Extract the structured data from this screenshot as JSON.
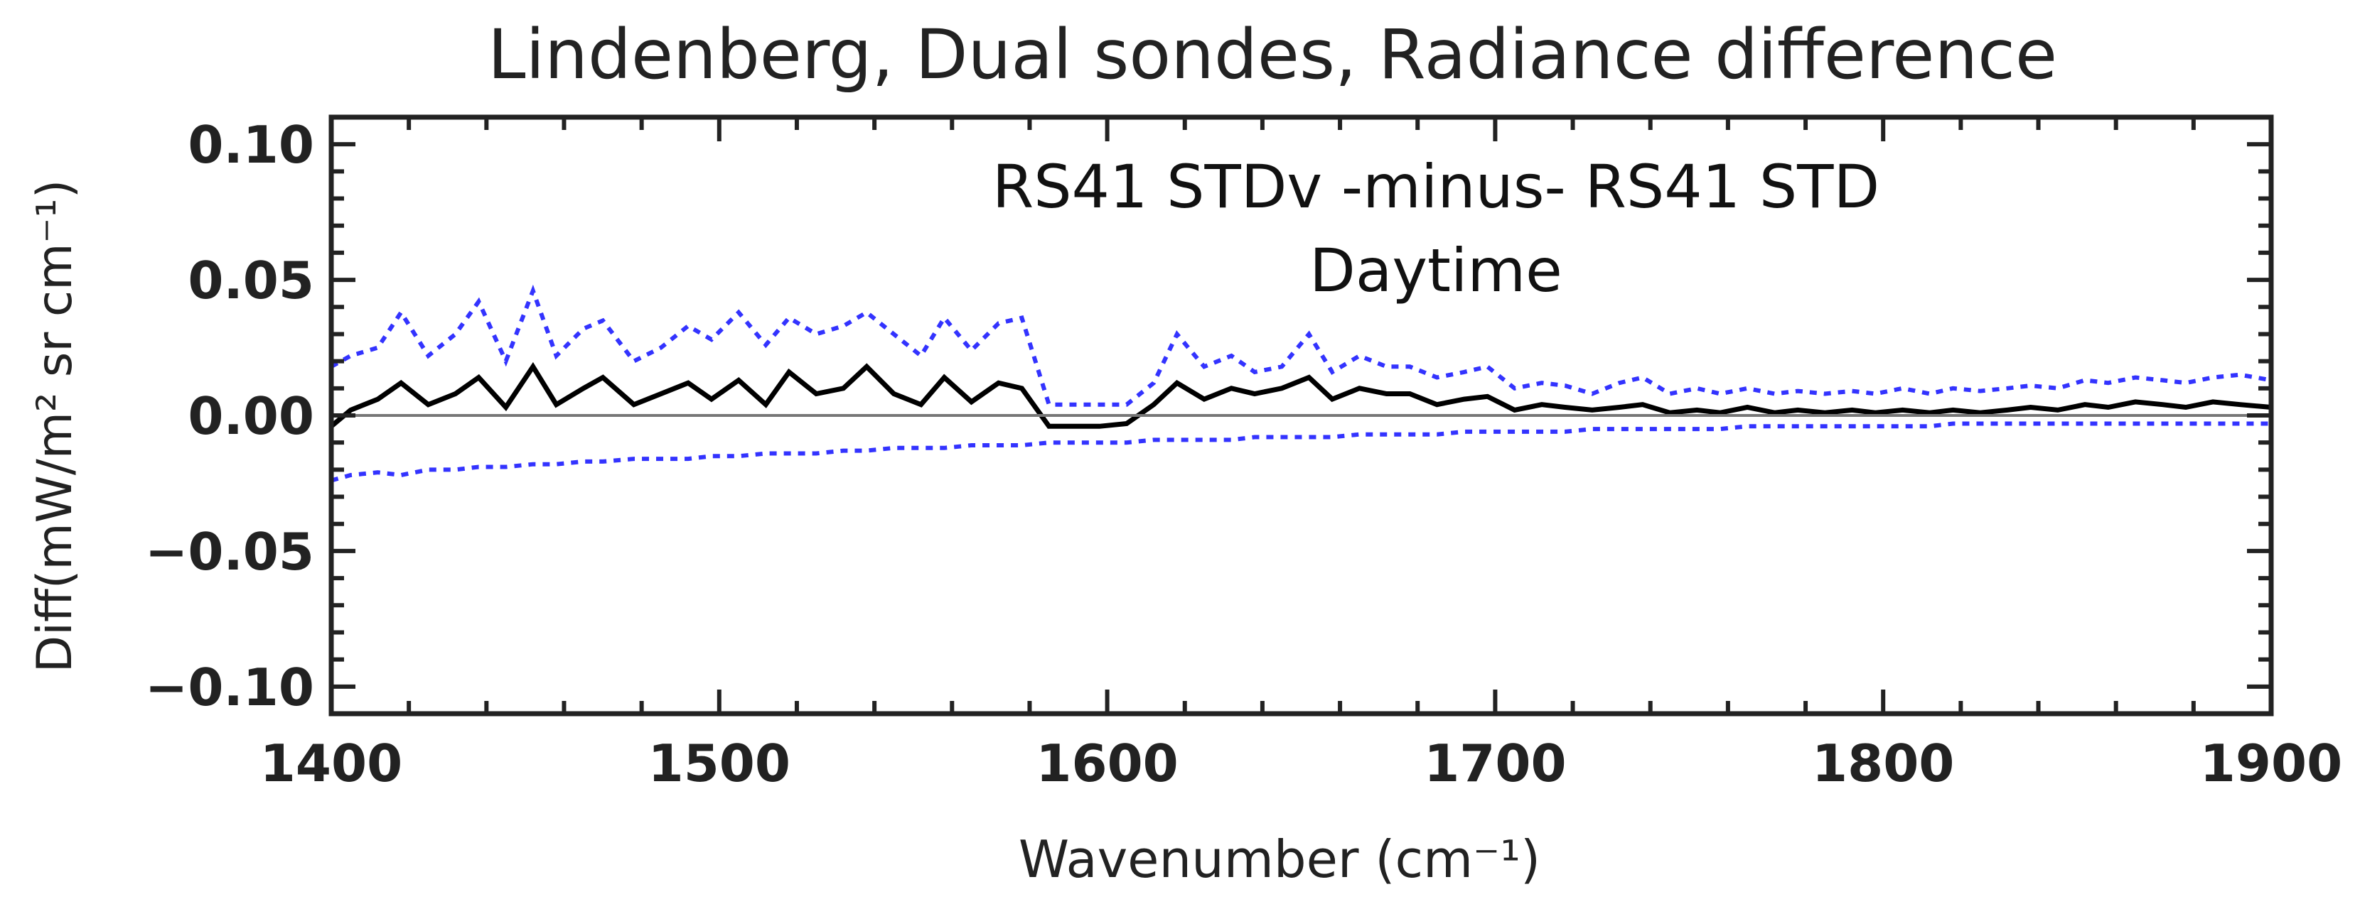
{
  "chart_data": {
    "type": "line",
    "title": "Lindenberg, Dual sondes, Radiance difference",
    "annotation_line1": "RS41 STDv -minus- RS41 STD",
    "annotation_line2": "Daytime",
    "xlabel": "Wavenumber (cm⁻¹)",
    "ylabel": "Diff(mW/m² sr cm⁻¹)",
    "xlim": [
      1400,
      1900
    ],
    "ylim": [
      -0.11,
      0.11
    ],
    "x_ticks": [
      1400,
      1500,
      1600,
      1700,
      1800,
      1900
    ],
    "x_tick_labels": [
      "1400",
      "1500",
      "1600",
      "1700",
      "1800",
      "1900"
    ],
    "y_ticks": [
      -0.1,
      -0.05,
      0.0,
      0.05,
      0.1
    ],
    "y_tick_labels": [
      "−0.10",
      "−0.05",
      "0.00",
      "0.05",
      "0.10"
    ],
    "grid": false,
    "legend": "none",
    "colors": {
      "mean": "#000000",
      "spread": "#3333ff",
      "zero_line": "#777777"
    },
    "series": [
      {
        "x": [
          1400,
          1405,
          1412,
          1418,
          1425,
          1432,
          1438,
          1445,
          1452,
          1458,
          1465,
          1470,
          1478,
          1485,
          1492,
          1498,
          1505,
          1512,
          1518,
          1525,
          1532,
          1538,
          1545,
          1552,
          1558,
          1565,
          1572,
          1578,
          1585,
          1592,
          1598,
          1605,
          1612,
          1618,
          1625,
          1632,
          1638,
          1645,
          1652,
          1658,
          1665,
          1672,
          1678,
          1685,
          1692,
          1698,
          1705,
          1712,
          1718,
          1725,
          1732,
          1738,
          1745,
          1752,
          1758,
          1765,
          1772,
          1778,
          1785,
          1792,
          1798,
          1805,
          1812,
          1818,
          1825,
          1832,
          1838,
          1845,
          1852,
          1858,
          1865,
          1872,
          1878,
          1885,
          1892,
          1900
        ],
        "values": [
          -0.004,
          0.002,
          0.006,
          0.012,
          0.004,
          0.008,
          0.014,
          0.003,
          0.018,
          0.004,
          0.01,
          0.014,
          0.004,
          0.008,
          0.012,
          0.006,
          0.013,
          0.004,
          0.016,
          0.008,
          0.01,
          0.018,
          0.008,
          0.004,
          0.014,
          0.005,
          0.012,
          0.01,
          -0.004,
          -0.004,
          -0.004,
          -0.003,
          0.004,
          0.012,
          0.006,
          0.01,
          0.008,
          0.01,
          0.014,
          0.006,
          0.01,
          0.008,
          0.008,
          0.004,
          0.006,
          0.007,
          0.002,
          0.004,
          0.003,
          0.002,
          0.003,
          0.004,
          0.001,
          0.002,
          0.001,
          0.003,
          0.001,
          0.002,
          0.001,
          0.002,
          0.001,
          0.002,
          0.001,
          0.002,
          0.001,
          0.002,
          0.003,
          0.002,
          0.004,
          0.003,
          0.005,
          0.004,
          0.003,
          0.005,
          0.004,
          0.003
        ]
      },
      {
        "x": [
          1400,
          1405,
          1412,
          1418,
          1425,
          1432,
          1438,
          1445,
          1452,
          1458,
          1465,
          1470,
          1478,
          1485,
          1492,
          1498,
          1505,
          1512,
          1518,
          1525,
          1532,
          1538,
          1545,
          1552,
          1558,
          1565,
          1572,
          1578,
          1585,
          1592,
          1598,
          1605,
          1612,
          1618,
          1625,
          1632,
          1638,
          1645,
          1652,
          1658,
          1665,
          1672,
          1678,
          1685,
          1692,
          1698,
          1705,
          1712,
          1718,
          1725,
          1732,
          1738,
          1745,
          1752,
          1758,
          1765,
          1772,
          1778,
          1785,
          1792,
          1798,
          1805,
          1812,
          1818,
          1825,
          1832,
          1838,
          1845,
          1852,
          1858,
          1865,
          1872,
          1878,
          1885,
          1892,
          1900
        ],
        "values": [
          0.018,
          0.022,
          0.025,
          0.038,
          0.022,
          0.03,
          0.042,
          0.02,
          0.046,
          0.022,
          0.032,
          0.035,
          0.02,
          0.025,
          0.033,
          0.028,
          0.038,
          0.026,
          0.036,
          0.03,
          0.033,
          0.038,
          0.03,
          0.022,
          0.036,
          0.024,
          0.034,
          0.036,
          0.004,
          0.004,
          0.004,
          0.004,
          0.012,
          0.03,
          0.018,
          0.022,
          0.016,
          0.018,
          0.03,
          0.016,
          0.022,
          0.018,
          0.018,
          0.014,
          0.016,
          0.018,
          0.01,
          0.012,
          0.011,
          0.008,
          0.012,
          0.014,
          0.008,
          0.01,
          0.008,
          0.01,
          0.008,
          0.009,
          0.008,
          0.009,
          0.008,
          0.01,
          0.008,
          0.01,
          0.009,
          0.01,
          0.011,
          0.01,
          0.013,
          0.012,
          0.014,
          0.013,
          0.012,
          0.014,
          0.015,
          0.013
        ]
      },
      {
        "x": [
          1400,
          1405,
          1412,
          1418,
          1425,
          1432,
          1438,
          1445,
          1452,
          1458,
          1465,
          1470,
          1478,
          1485,
          1492,
          1498,
          1505,
          1512,
          1518,
          1525,
          1532,
          1538,
          1545,
          1552,
          1558,
          1565,
          1572,
          1578,
          1585,
          1592,
          1598,
          1605,
          1612,
          1618,
          1625,
          1632,
          1638,
          1645,
          1652,
          1658,
          1665,
          1672,
          1678,
          1685,
          1692,
          1698,
          1705,
          1712,
          1718,
          1725,
          1732,
          1738,
          1745,
          1752,
          1758,
          1765,
          1772,
          1778,
          1785,
          1792,
          1798,
          1805,
          1812,
          1818,
          1825,
          1832,
          1838,
          1845,
          1852,
          1858,
          1865,
          1872,
          1878,
          1885,
          1892,
          1900
        ],
        "values": [
          -0.024,
          -0.022,
          -0.021,
          -0.022,
          -0.02,
          -0.02,
          -0.019,
          -0.019,
          -0.018,
          -0.018,
          -0.017,
          -0.017,
          -0.016,
          -0.016,
          -0.016,
          -0.015,
          -0.015,
          -0.014,
          -0.014,
          -0.014,
          -0.013,
          -0.013,
          -0.012,
          -0.012,
          -0.012,
          -0.011,
          -0.011,
          -0.011,
          -0.01,
          -0.01,
          -0.01,
          -0.01,
          -0.009,
          -0.009,
          -0.009,
          -0.009,
          -0.008,
          -0.008,
          -0.008,
          -0.008,
          -0.007,
          -0.007,
          -0.007,
          -0.007,
          -0.006,
          -0.006,
          -0.006,
          -0.006,
          -0.006,
          -0.005,
          -0.005,
          -0.005,
          -0.005,
          -0.005,
          -0.005,
          -0.004,
          -0.004,
          -0.004,
          -0.004,
          -0.004,
          -0.004,
          -0.004,
          -0.004,
          -0.003,
          -0.003,
          -0.003,
          -0.003,
          -0.003,
          -0.003,
          -0.003,
          -0.003,
          -0.003,
          -0.003,
          -0.003,
          -0.003,
          -0.003
        ]
      }
    ]
  }
}
